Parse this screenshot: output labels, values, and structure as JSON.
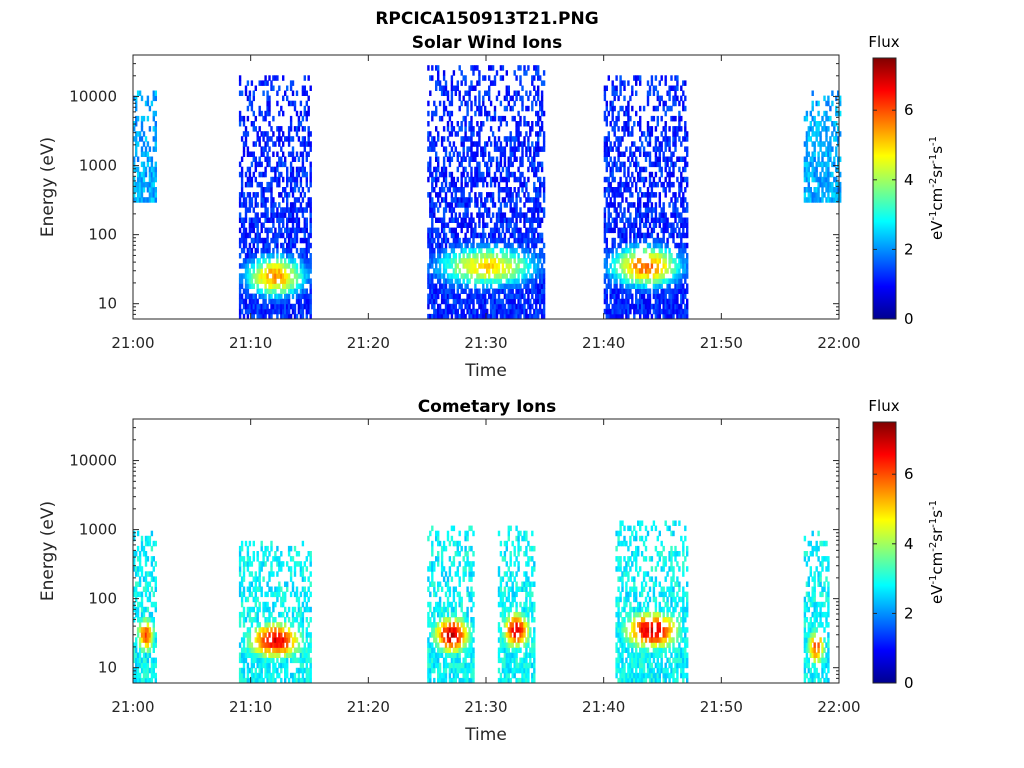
{
  "figure": {
    "filename_title": "RPCICA150913T21.PNG"
  },
  "colors": {
    "background": "#ffffff",
    "axes": "#262626",
    "colormap": [
      "#00008f",
      "#0000ff",
      "#0080ff",
      "#00ffff",
      "#80ff80",
      "#ffff00",
      "#ff8000",
      "#ff0000",
      "#800000"
    ]
  },
  "chart_data": [
    {
      "type": "heatmap",
      "title": "Solar Wind Ions",
      "xlabel": "Time",
      "ylabel": "Energy (eV)",
      "x_ticks": [
        "21:00",
        "21:10",
        "21:20",
        "21:30",
        "21:40",
        "21:50",
        "22:00"
      ],
      "xlim_minutes_after_21_00": [
        0,
        60
      ],
      "y_scale": "log",
      "ylim": [
        6,
        40000
      ],
      "y_ticks": [
        "10",
        "100",
        "1000",
        "10000"
      ],
      "colorbar": {
        "title": "Flux",
        "label": "eV-1cm-2sr-1s-1",
        "range": [
          0,
          7.5
        ],
        "ticks": [
          "0",
          "2",
          "4",
          "6"
        ]
      },
      "grid": false,
      "bursts": [
        {
          "time_range": [
            "21:00",
            "21:02"
          ],
          "energy_range_eV": [
            300,
            13000
          ],
          "dominant_flux": 2.2,
          "peak_flux": 2.5
        },
        {
          "time_range": [
            "21:09",
            "21:15"
          ],
          "energy_range_eV": [
            6,
            22000
          ],
          "dominant_flux": 1.2,
          "peak_flux": 5.5,
          "peak_energy_eV": 25
        },
        {
          "time_range": [
            "21:25",
            "21:35"
          ],
          "energy_range_eV": [
            6,
            30000
          ],
          "dominant_flux": 1.2,
          "peak_flux": 5.0,
          "peak_energy_eV": 35
        },
        {
          "time_range": [
            "21:40",
            "21:47"
          ],
          "energy_range_eV": [
            6,
            20000
          ],
          "dominant_flux": 1.2,
          "peak_flux": 5.8,
          "peak_energy_eV": 35
        },
        {
          "time_range": [
            "21:57",
            "22:00"
          ],
          "energy_range_eV": [
            300,
            12000
          ],
          "dominant_flux": 2.2,
          "peak_flux": 2.5
        }
      ]
    },
    {
      "type": "heatmap",
      "title": "Cometary Ions",
      "xlabel": "Time",
      "ylabel": "Energy (eV)",
      "x_ticks": [
        "21:00",
        "21:10",
        "21:20",
        "21:30",
        "21:40",
        "21:50",
        "22:00"
      ],
      "xlim_minutes_after_21_00": [
        0,
        60
      ],
      "y_scale": "log",
      "ylim": [
        6,
        40000
      ],
      "y_ticks": [
        "10",
        "100",
        "1000",
        "10000"
      ],
      "colorbar": {
        "title": "Flux",
        "label": "eV-1cm-2sr-1s-1",
        "range": [
          0,
          7.5
        ],
        "ticks": [
          "0",
          "2",
          "4",
          "6"
        ]
      },
      "grid": false,
      "bursts": [
        {
          "time_range": [
            "21:00",
            "21:02"
          ],
          "energy_range_eV": [
            6,
            1100
          ],
          "dominant_flux": 2.8,
          "peak_flux": 6.0,
          "peak_energy_eV": 30
        },
        {
          "time_range": [
            "21:09",
            "21:15"
          ],
          "energy_range_eV": [
            6,
            700
          ],
          "dominant_flux": 2.8,
          "peak_flux": 6.8,
          "peak_energy_eV": 25
        },
        {
          "time_range": [
            "21:25",
            "21:29"
          ],
          "energy_range_eV": [
            6,
            1200
          ],
          "dominant_flux": 2.8,
          "peak_flux": 7.0,
          "peak_energy_eV": 30
        },
        {
          "time_range": [
            "21:31",
            "21:34"
          ],
          "energy_range_eV": [
            6,
            1200
          ],
          "dominant_flux": 2.8,
          "peak_flux": 6.8,
          "peak_energy_eV": 35
        },
        {
          "time_range": [
            "21:41",
            "21:47"
          ],
          "energy_range_eV": [
            6,
            1400
          ],
          "dominant_flux": 2.8,
          "peak_flux": 7.0,
          "peak_energy_eV": 35
        },
        {
          "time_range": [
            "21:57",
            "21:59"
          ],
          "energy_range_eV": [
            6,
            900
          ],
          "dominant_flux": 2.8,
          "peak_flux": 6.0,
          "peak_energy_eV": 20
        }
      ]
    }
  ]
}
